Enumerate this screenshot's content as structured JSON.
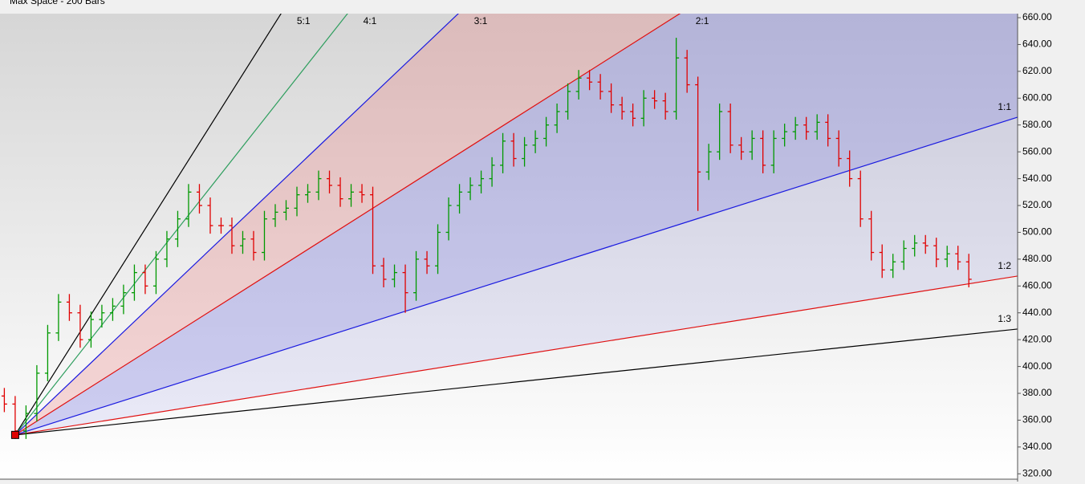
{
  "chart_data": {
    "type": "ohlc",
    "header_text": "Max Space - 200 Bars",
    "xlim": [
      -0.4,
      93.5
    ],
    "ylim": [
      316,
      663
    ],
    "yticks": [
      {
        "value": 320,
        "label": "320.00"
      },
      {
        "value": 340,
        "label": "340.00"
      },
      {
        "value": 360,
        "label": "360.00"
      },
      {
        "value": 380,
        "label": "380.00"
      },
      {
        "value": 400,
        "label": "400.00"
      },
      {
        "value": 420,
        "label": "420.00"
      },
      {
        "value": 440,
        "label": "440.00"
      },
      {
        "value": 460,
        "label": "460.00"
      },
      {
        "value": 480,
        "label": "480.00"
      },
      {
        "value": 500,
        "label": "500.00"
      },
      {
        "value": 520,
        "label": "520.00"
      },
      {
        "value": 540,
        "label": "540.00"
      },
      {
        "value": 560,
        "label": "560.00"
      },
      {
        "value": 580,
        "label": "580.00"
      },
      {
        "value": 600,
        "label": "600.00"
      },
      {
        "value": 620,
        "label": "620.00"
      },
      {
        "value": 640,
        "label": "640.00"
      },
      {
        "value": 660,
        "label": "660.00"
      }
    ],
    "up_color": "#009900",
    "down_color": "#e00000",
    "open": [
      378,
      372,
      352,
      365,
      395,
      425,
      448,
      440,
      420,
      435,
      440,
      445,
      455,
      470,
      460,
      480,
      495,
      510,
      530,
      520,
      505,
      505,
      490,
      495,
      485,
      510,
      515,
      518,
      528,
      530,
      540,
      535,
      525,
      530,
      528,
      475,
      465,
      470,
      455,
      480,
      475,
      500,
      520,
      530,
      535,
      540,
      550,
      568,
      555,
      565,
      570,
      580,
      590,
      605,
      615,
      612,
      605,
      595,
      590,
      585,
      600,
      598,
      590,
      630,
      610,
      545,
      560,
      590,
      565,
      560,
      570,
      550,
      570,
      575,
      580,
      575,
      582,
      570,
      555,
      540,
      510,
      485,
      472,
      478,
      488,
      492,
      490,
      480,
      484,
      478
    ],
    "high": [
      384,
      378,
      371,
      401,
      431,
      454,
      454,
      446,
      441,
      446,
      451,
      461,
      476,
      476,
      486,
      501,
      516,
      536,
      536,
      526,
      511,
      511,
      501,
      501,
      516,
      521,
      524,
      534,
      536,
      546,
      546,
      541,
      536,
      536,
      534,
      481,
      476,
      476,
      486,
      486,
      506,
      526,
      536,
      541,
      546,
      556,
      574,
      574,
      571,
      576,
      586,
      596,
      611,
      621,
      621,
      618,
      611,
      601,
      596,
      606,
      606,
      604,
      645,
      636,
      616,
      566,
      596,
      596,
      571,
      576,
      576,
      576,
      581,
      586,
      586,
      588,
      588,
      576,
      561,
      546,
      516,
      491,
      484,
      494,
      498,
      498,
      496,
      490,
      490,
      484
    ],
    "low": [
      366,
      346,
      346,
      359,
      389,
      419,
      434,
      414,
      414,
      429,
      434,
      439,
      449,
      454,
      454,
      474,
      489,
      504,
      514,
      499,
      499,
      484,
      484,
      479,
      479,
      504,
      509,
      512,
      522,
      524,
      529,
      519,
      519,
      522,
      469,
      459,
      459,
      440,
      449,
      469,
      469,
      494,
      514,
      524,
      529,
      534,
      544,
      549,
      549,
      559,
      564,
      574,
      584,
      599,
      606,
      599,
      589,
      584,
      579,
      579,
      592,
      584,
      584,
      604,
      516,
      539,
      554,
      559,
      554,
      554,
      544,
      544,
      564,
      569,
      569,
      569,
      564,
      549,
      534,
      504,
      479,
      466,
      466,
      472,
      482,
      484,
      474,
      474,
      472,
      459
    ],
    "close": [
      372,
      352,
      365,
      395,
      425,
      448,
      440,
      420,
      435,
      440,
      445,
      455,
      470,
      460,
      480,
      495,
      510,
      530,
      520,
      505,
      505,
      490,
      495,
      485,
      510,
      515,
      518,
      528,
      530,
      540,
      535,
      525,
      530,
      528,
      475,
      465,
      470,
      455,
      480,
      475,
      500,
      520,
      530,
      535,
      540,
      550,
      568,
      555,
      565,
      570,
      580,
      590,
      605,
      615,
      612,
      605,
      595,
      590,
      585,
      600,
      598,
      590,
      630,
      610,
      545,
      560,
      590,
      565,
      560,
      570,
      550,
      570,
      575,
      580,
      575,
      582,
      570,
      555,
      540,
      510,
      485,
      472,
      478,
      488,
      492,
      490,
      480,
      484,
      478,
      465
    ],
    "gann_fan": {
      "origin_x": 1,
      "origin_y": 349,
      "unit": 2.56,
      "lines": [
        {
          "label": "5:1",
          "ratio": 5,
          "color": "#000000"
        },
        {
          "label": "4:1",
          "ratio": 4,
          "color": "#2e9e5e"
        },
        {
          "label": "3:1",
          "ratio": 3,
          "color": "#1a1ae0",
          "fill_below": "rgba(235,120,120,0.28)"
        },
        {
          "label": "2:1",
          "ratio": 2,
          "color": "#e01010",
          "fill_below": "rgba(110,110,220,0.32)"
        },
        {
          "label": "1:1",
          "ratio": 1,
          "color": "#1a1ae0",
          "fill_below": "rgba(140,140,230,0.16)"
        },
        {
          "label": "1:2",
          "ratio": 0.5,
          "color": "#e01010"
        },
        {
          "label": "1:3",
          "ratio": 0.3333,
          "color": "#000000"
        }
      ]
    }
  }
}
